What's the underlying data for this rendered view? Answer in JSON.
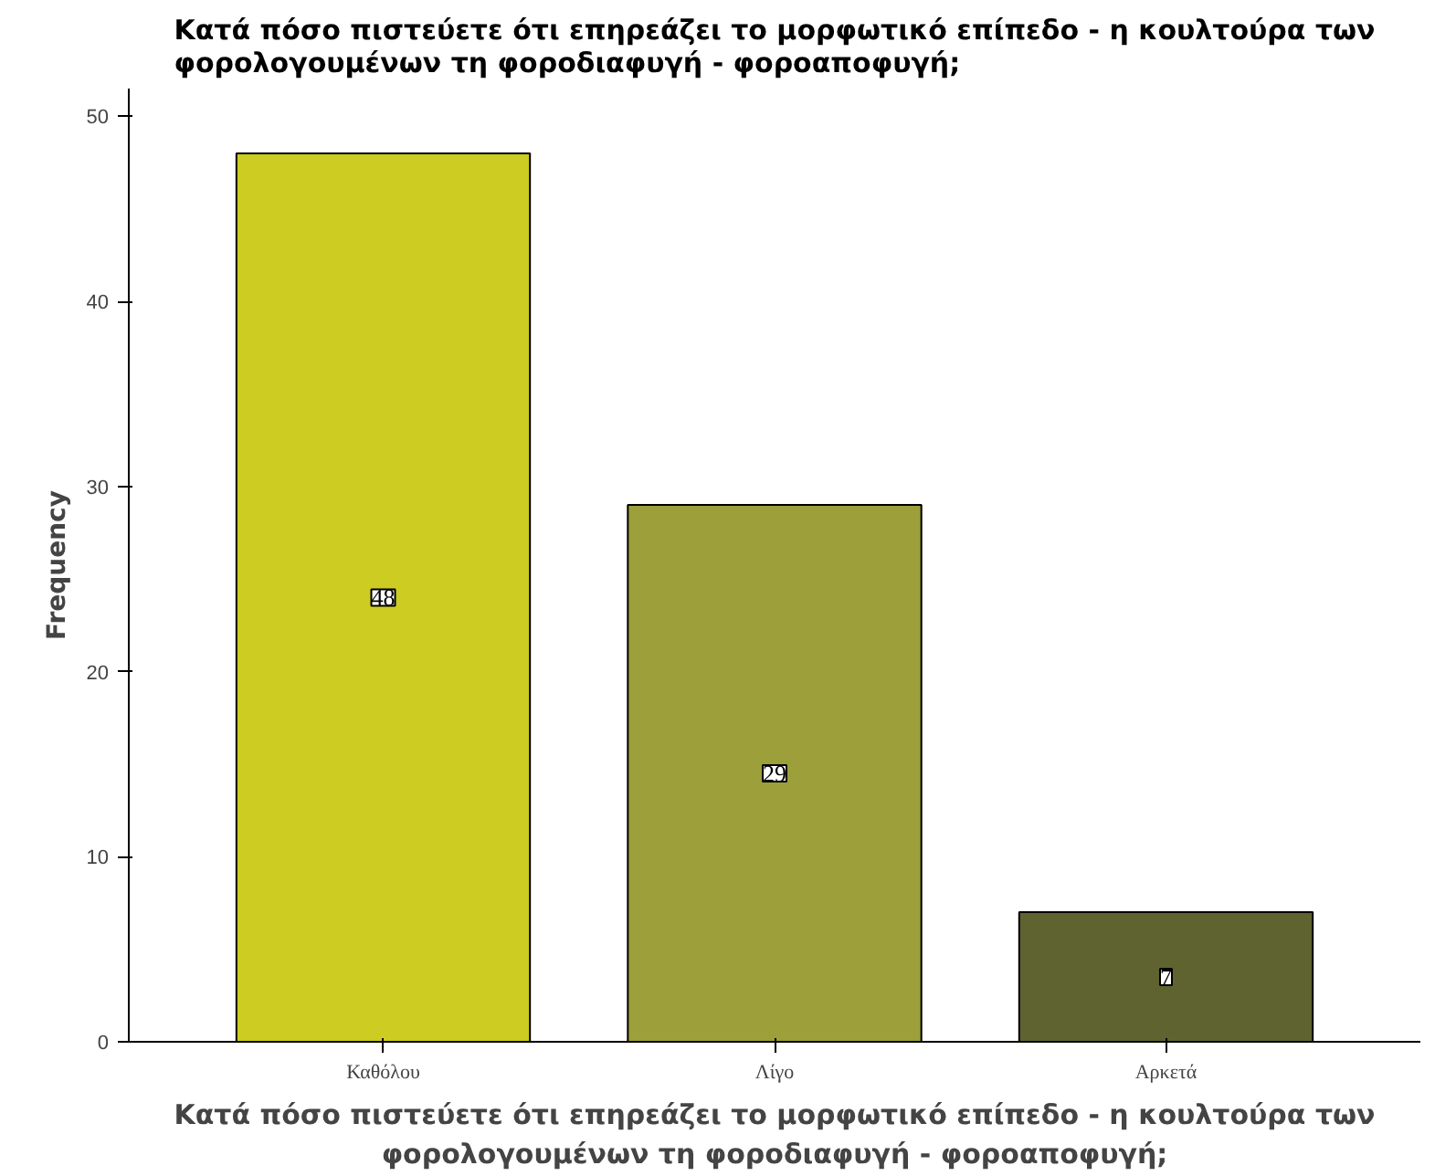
{
  "chart_data": {
    "type": "bar",
    "title": "Κατά πόσο πιστεύετε ότι επηρεάζει το μορφωτικό επίπεδο - η κουλτούρα των φορολογουμένων τη φοροδιαφυγή - φοροαποφυγή;",
    "xlabel": "Κατά πόσο πιστεύετε ότι επηρεάζει το μορφωτικό επίπεδο - η κουλτούρα των φορολογουμένων τη φοροδιαφυγή - φοροαποφυγή;",
    "ylabel": "Frequency",
    "categories": [
      "Καθόλου",
      "Λίγο",
      "Αρκετά"
    ],
    "values": [
      48,
      29,
      7
    ],
    "colors": [
      "#cccc22",
      "#9c9f3a",
      "#5f6330"
    ],
    "ylim": [
      0,
      51.5
    ],
    "yticks": [
      0,
      10,
      20,
      30,
      40,
      50
    ],
    "data_labels": true,
    "grid": false
  }
}
